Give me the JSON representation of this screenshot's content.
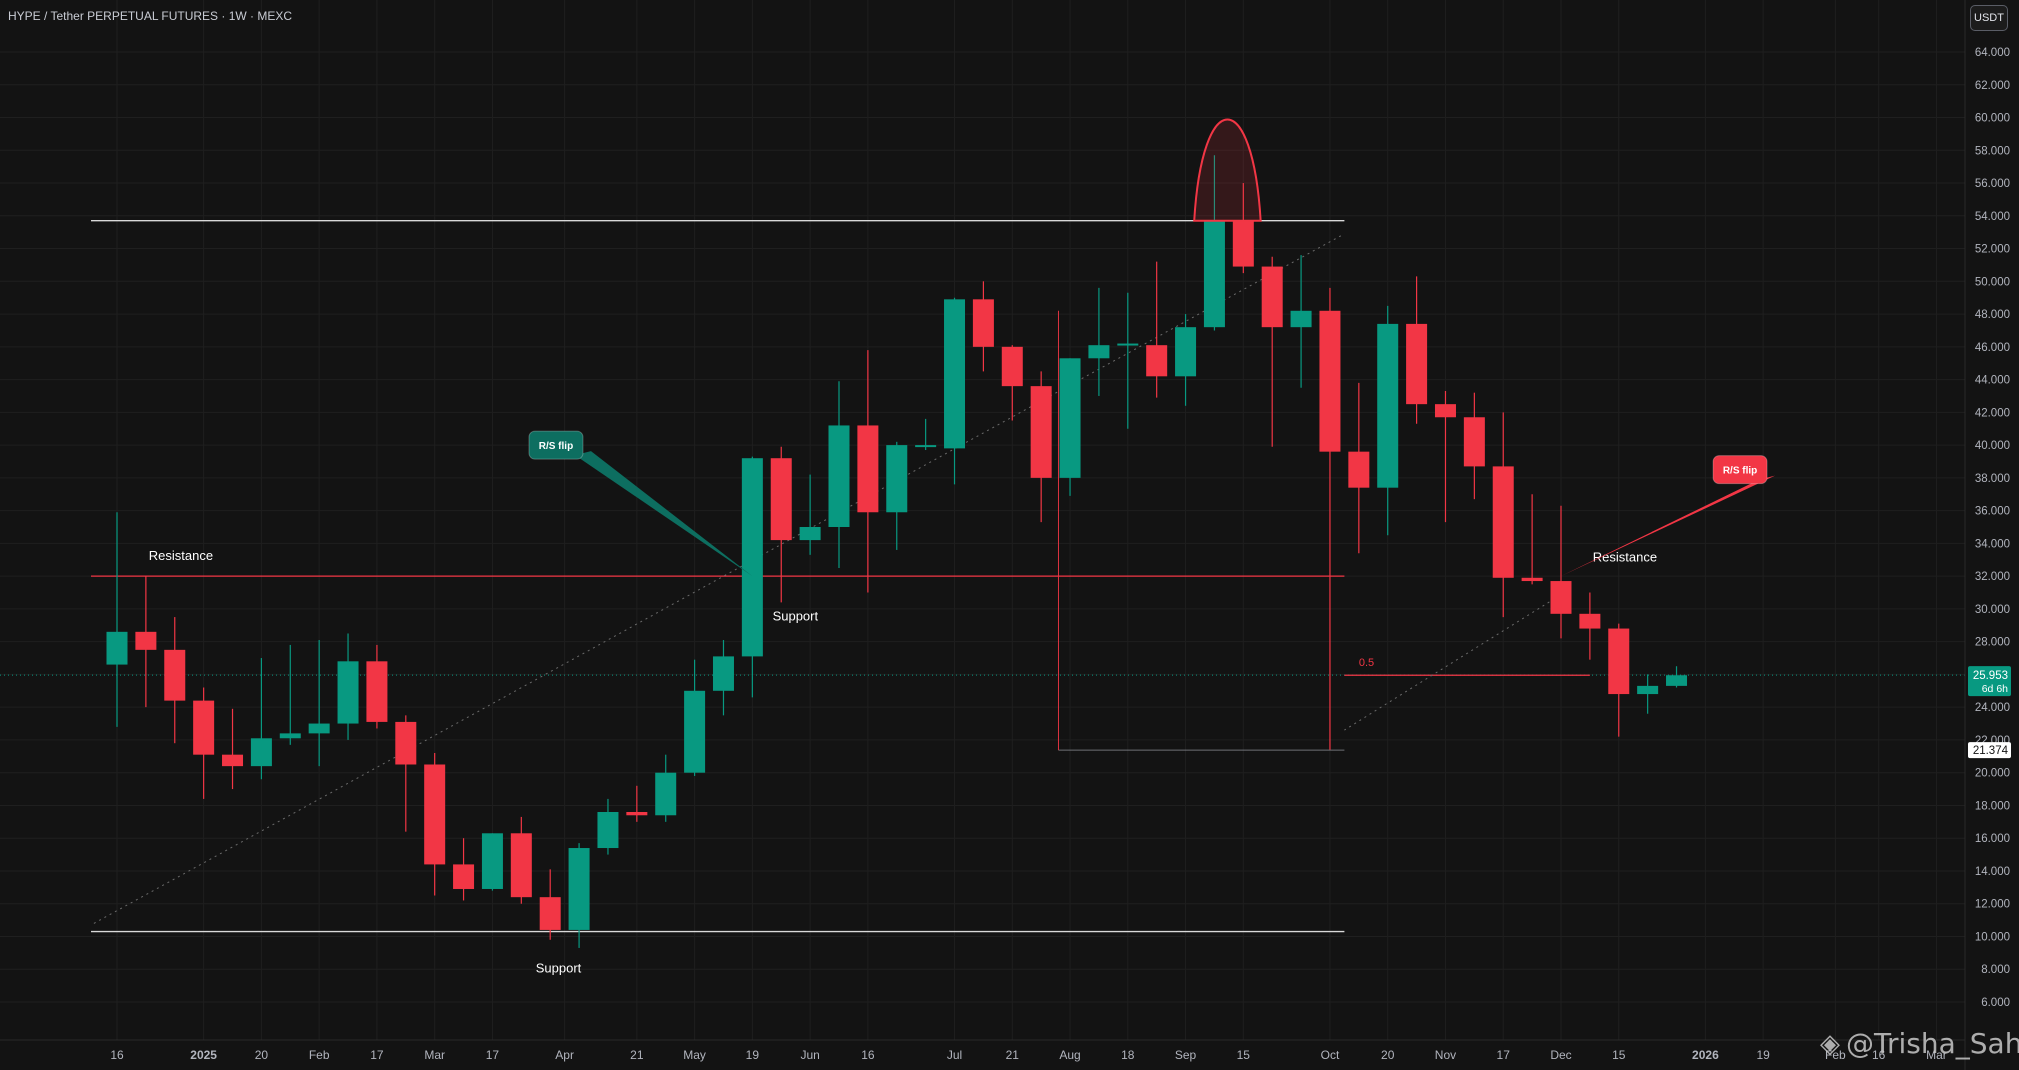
{
  "header": {
    "title": "HYPE / Tether PERPETUAL FUTURES · 1W · MEXC",
    "unit_button": "USDT"
  },
  "watermark": {
    "text": "@Trisha_Saha",
    "icon": "binance-logo-icon"
  },
  "colors": {
    "up": "#089981",
    "down": "#f23645",
    "background": "#131313",
    "grid": "#1f1f1f",
    "annotation_red": "#f23645",
    "annotation_teal": "#0d6e60"
  },
  "chart_data": {
    "type": "candlestick",
    "title": "HYPE / Tether PERPETUAL FUTURES · 1W · MEXC",
    "timeframe": "1W",
    "exchange": "MEXC",
    "y_unit": "USDT",
    "ylim": [
      3.2,
      65.2
    ],
    "y_ticks": [
      6,
      8,
      10,
      12,
      14,
      16,
      18,
      20,
      22,
      24,
      26,
      28,
      30,
      32,
      34,
      36,
      38,
      40,
      42,
      44,
      46,
      48,
      50,
      52,
      54,
      56,
      58,
      60,
      62,
      64
    ],
    "x_tick_labels": [
      {
        "label": "16",
        "week": 0
      },
      {
        "label": "2025",
        "week": 3
      },
      {
        "label": "20",
        "week": 5
      },
      {
        "label": "Feb",
        "week": 7
      },
      {
        "label": "17",
        "week": 9
      },
      {
        "label": "Mar",
        "week": 11
      },
      {
        "label": "17",
        "week": 13
      },
      {
        "label": "Apr",
        "week": 15.5
      },
      {
        "label": "21",
        "week": 18
      },
      {
        "label": "May",
        "week": 20
      },
      {
        "label": "19",
        "week": 22
      },
      {
        "label": "Jun",
        "week": 24
      },
      {
        "label": "16",
        "week": 26
      },
      {
        "label": "Jul",
        "week": 29
      },
      {
        "label": "21",
        "week": 31
      },
      {
        "label": "Aug",
        "week": 33
      },
      {
        "label": "18",
        "week": 35
      },
      {
        "label": "Sep",
        "week": 37
      },
      {
        "label": "15",
        "week": 39
      },
      {
        "label": "Oct",
        "week": 42
      },
      {
        "label": "20",
        "week": 44
      },
      {
        "label": "Nov",
        "week": 46
      },
      {
        "label": "17",
        "week": 48
      },
      {
        "label": "Dec",
        "week": 50
      },
      {
        "label": "15",
        "week": 52
      },
      {
        "label": "2026",
        "week": 55
      },
      {
        "label": "19",
        "week": 57
      },
      {
        "label": "Feb",
        "week": 59.5
      },
      {
        "label": "16",
        "week": 61
      },
      {
        "label": "Mar",
        "week": 63
      }
    ],
    "candles": [
      {
        "o": 26.6,
        "h": 35.9,
        "l": 22.8,
        "c": 28.6
      },
      {
        "o": 28.6,
        "h": 32.0,
        "l": 24.0,
        "c": 27.5
      },
      {
        "o": 27.5,
        "h": 29.5,
        "l": 21.8,
        "c": 24.4
      },
      {
        "o": 24.4,
        "h": 25.2,
        "l": 18.4,
        "c": 21.1
      },
      {
        "o": 21.1,
        "h": 23.9,
        "l": 19.0,
        "c": 20.4
      },
      {
        "o": 20.4,
        "h": 27.0,
        "l": 19.6,
        "c": 22.1
      },
      {
        "o": 22.1,
        "h": 27.8,
        "l": 21.7,
        "c": 22.4
      },
      {
        "o": 22.4,
        "h": 28.1,
        "l": 20.4,
        "c": 23.0
      },
      {
        "o": 23.0,
        "h": 28.5,
        "l": 22.0,
        "c": 26.8
      },
      {
        "o": 26.8,
        "h": 27.8,
        "l": 22.7,
        "c": 23.1
      },
      {
        "o": 23.1,
        "h": 23.5,
        "l": 16.4,
        "c": 20.5
      },
      {
        "o": 20.5,
        "h": 21.2,
        "l": 12.5,
        "c": 14.4
      },
      {
        "o": 14.4,
        "h": 16.0,
        "l": 12.2,
        "c": 12.9
      },
      {
        "o": 12.9,
        "h": 16.3,
        "l": 12.8,
        "c": 16.3
      },
      {
        "o": 16.3,
        "h": 17.3,
        "l": 12.0,
        "c": 12.4
      },
      {
        "o": 12.4,
        "h": 14.1,
        "l": 9.8,
        "c": 10.4
      },
      {
        "o": 10.4,
        "h": 15.7,
        "l": 9.3,
        "c": 15.4
      },
      {
        "o": 15.4,
        "h": 18.4,
        "l": 15.0,
        "c": 17.6
      },
      {
        "o": 17.6,
        "h": 19.2,
        "l": 17.0,
        "c": 17.4
      },
      {
        "o": 17.4,
        "h": 21.1,
        "l": 17.0,
        "c": 20.0
      },
      {
        "o": 20.0,
        "h": 26.9,
        "l": 19.8,
        "c": 25.0
      },
      {
        "o": 25.0,
        "h": 28.1,
        "l": 23.5,
        "c": 27.1
      },
      {
        "o": 27.1,
        "h": 39.3,
        "l": 24.6,
        "c": 39.2
      },
      {
        "o": 39.2,
        "h": 39.9,
        "l": 30.4,
        "c": 34.2
      },
      {
        "o": 34.2,
        "h": 38.2,
        "l": 33.3,
        "c": 35.0
      },
      {
        "o": 35.0,
        "h": 43.9,
        "l": 32.5,
        "c": 41.2
      },
      {
        "o": 41.2,
        "h": 45.8,
        "l": 31.0,
        "c": 35.9
      },
      {
        "o": 35.9,
        "h": 40.2,
        "l": 33.6,
        "c": 40.0
      },
      {
        "o": 40.0,
        "h": 41.6,
        "l": 39.7,
        "c": 40.0
      },
      {
        "o": 39.8,
        "h": 49.0,
        "l": 37.6,
        "c": 48.9
      },
      {
        "o": 48.9,
        "h": 50.0,
        "l": 44.5,
        "c": 46.0
      },
      {
        "o": 46.0,
        "h": 46.1,
        "l": 41.5,
        "c": 43.6
      },
      {
        "o": 43.6,
        "h": 44.5,
        "l": 35.3,
        "c": 38.0
      },
      {
        "o": 38.0,
        "h": 45.3,
        "l": 36.9,
        "c": 45.3
      },
      {
        "o": 45.3,
        "h": 49.6,
        "l": 43.0,
        "c": 46.1
      },
      {
        "o": 46.1,
        "h": 49.3,
        "l": 41.0,
        "c": 46.2
      },
      {
        "o": 46.1,
        "h": 51.2,
        "l": 42.9,
        "c": 44.2
      },
      {
        "o": 44.2,
        "h": 48.0,
        "l": 42.4,
        "c": 47.2
      },
      {
        "o": 47.2,
        "h": 57.7,
        "l": 47.0,
        "c": 53.7
      },
      {
        "o": 53.7,
        "h": 56.0,
        "l": 50.5,
        "c": 50.9
      },
      {
        "o": 50.9,
        "h": 51.5,
        "l": 39.9,
        "c": 47.2
      },
      {
        "o": 47.2,
        "h": 51.6,
        "l": 43.5,
        "c": 48.2
      },
      {
        "o": 48.2,
        "h": 49.6,
        "l": 21.4,
        "c": 39.6
      },
      {
        "o": 39.6,
        "h": 43.8,
        "l": 33.4,
        "c": 37.4
      },
      {
        "o": 37.4,
        "h": 48.5,
        "l": 34.5,
        "c": 47.4
      },
      {
        "o": 47.4,
        "h": 50.3,
        "l": 41.3,
        "c": 42.5
      },
      {
        "o": 42.5,
        "h": 43.3,
        "l": 35.3,
        "c": 41.7
      },
      {
        "o": 41.7,
        "h": 43.2,
        "l": 36.7,
        "c": 38.7
      },
      {
        "o": 38.7,
        "h": 42.0,
        "l": 29.5,
        "c": 31.9
      },
      {
        "o": 31.9,
        "h": 37.0,
        "l": 31.5,
        "c": 31.7
      },
      {
        "o": 31.7,
        "h": 36.3,
        "l": 28.2,
        "c": 29.7
      },
      {
        "o": 29.7,
        "h": 31.0,
        "l": 26.9,
        "c": 28.8
      },
      {
        "o": 28.8,
        "h": 29.1,
        "l": 22.2,
        "c": 24.8
      },
      {
        "o": 24.8,
        "h": 26.0,
        "l": 23.6,
        "c": 25.3
      },
      {
        "o": 25.3,
        "h": 26.5,
        "l": 25.2,
        "c": 25.95
      }
    ],
    "horizontal_levels": [
      {
        "value": 53.7,
        "label": "",
        "color": "#d9d9d9"
      },
      {
        "value": 32.0,
        "label": "Resistance",
        "color": "#f23645"
      },
      {
        "value": 10.3,
        "label": "Support",
        "color": "#d9d9d9"
      },
      {
        "value": 21.374,
        "label": "",
        "color": "#9598a1"
      }
    ],
    "fib_level": {
      "label": "0.5",
      "value": 25.95
    },
    "text_annotations": [
      {
        "text": "Resistance",
        "week": 1.1,
        "value": 33.0
      },
      {
        "text": "Support",
        "week": 22.7,
        "value": 29.3
      },
      {
        "text": "Support",
        "week": 14.5,
        "value": 7.8
      },
      {
        "text": "Resistance",
        "week": 51.1,
        "value": 32.9
      }
    ],
    "callouts": [
      {
        "text": "R/S flip",
        "week": 15.2,
        "value": 40.0,
        "target_week": 22.0,
        "target_value": 32.0,
        "color": "#0d6e60"
      },
      {
        "text": "R/S flip",
        "week": 56.2,
        "value": 38.5,
        "target_week": 50.0,
        "target_value": 32.0,
        "color": "#f23645"
      }
    ],
    "price_label": {
      "value": "25.953",
      "countdown": "6d 6h"
    },
    "low_label": "21.374"
  }
}
